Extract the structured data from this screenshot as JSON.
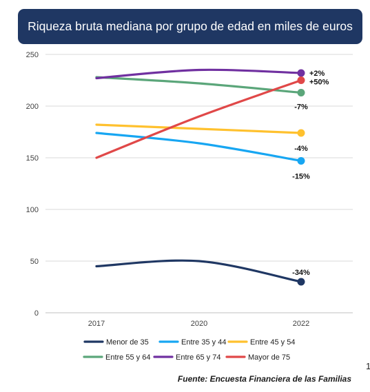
{
  "header": {
    "title": "Riqueza bruta mediana por grupo de edad en miles de euros"
  },
  "footer": {
    "source": "Fuente: Encuesta Financiera de las Familias",
    "page_number": "1"
  },
  "chart_data": {
    "type": "line",
    "title": "Riqueza bruta mediana por grupo de edad en miles de euros",
    "xlabel": "",
    "ylabel": "",
    "categories": [
      "2017",
      "2020",
      "2022"
    ],
    "ylim": [
      0,
      250
    ],
    "yticks": [
      0,
      50,
      100,
      150,
      200,
      250
    ],
    "grid": "horizontal",
    "smooth": true,
    "legend_position": "bottom",
    "series": [
      {
        "name": "Menor de 35",
        "color": "#1f3763",
        "values": [
          45,
          50,
          30
        ],
        "end_label": "-34%"
      },
      {
        "name": "Entre 35 y 44",
        "color": "#17a6f2",
        "values": [
          174,
          164,
          147
        ],
        "end_label": "-15%"
      },
      {
        "name": "Entre 45 y 54",
        "color": "#ffc12e",
        "values": [
          182,
          178,
          174
        ],
        "end_label": "-4%"
      },
      {
        "name": "Entre 55 y 64",
        "color": "#5ba67a",
        "values": [
          228,
          222,
          213
        ],
        "end_label": "-7%"
      },
      {
        "name": "Entre 65 y 74",
        "color": "#7030a0",
        "values": [
          227,
          235,
          232
        ],
        "end_label": "+2%"
      },
      {
        "name": "Mayor de 75",
        "color": "#e04848",
        "values": [
          150,
          190,
          225
        ],
        "end_label": "+50%"
      }
    ]
  }
}
